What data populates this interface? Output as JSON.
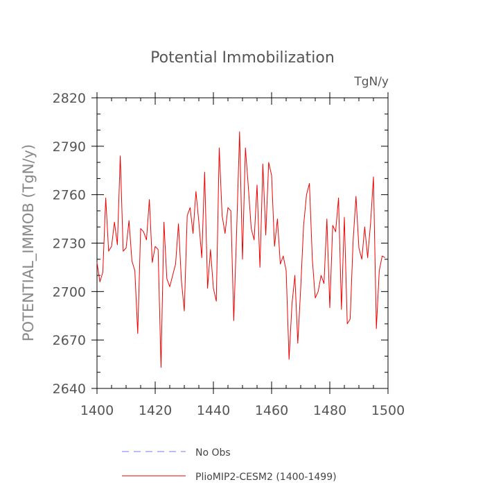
{
  "chart_data": {
    "type": "line",
    "title": "Potential Immobilization",
    "units_label": "TgN/y",
    "ylabel": "POTENTIAL_IMMOB  (TgN/y)",
    "xlabel": "",
    "xlim": [
      1400,
      1500
    ],
    "ylim": [
      2640,
      2820
    ],
    "x_ticks": [
      1400,
      1420,
      1440,
      1460,
      1480,
      1500
    ],
    "y_ticks": [
      2640,
      2670,
      2700,
      2730,
      2760,
      2790,
      2820
    ],
    "grid": false,
    "legend_position": "bottom-center",
    "legend": [
      {
        "label": "No Obs",
        "color": "#7777ff",
        "style": "dashed"
      },
      {
        "label": "PlioMIP2-CESM2 (1400-1499)",
        "color": "#ee0000",
        "style": "solid"
      }
    ],
    "series": [
      {
        "name": "PlioMIP2-CESM2 (1400-1499)",
        "color": "#ee0000",
        "x": [
          1400,
          1401,
          1402,
          1403,
          1404,
          1405,
          1406,
          1407,
          1408,
          1409,
          1410,
          1411,
          1412,
          1413,
          1414,
          1415,
          1416,
          1417,
          1418,
          1419,
          1420,
          1421,
          1422,
          1423,
          1424,
          1425,
          1426,
          1427,
          1428,
          1429,
          1430,
          1431,
          1432,
          1433,
          1434,
          1435,
          1436,
          1437,
          1438,
          1439,
          1440,
          1441,
          1442,
          1443,
          1444,
          1445,
          1446,
          1447,
          1448,
          1449,
          1450,
          1451,
          1452,
          1453,
          1454,
          1455,
          1456,
          1457,
          1458,
          1459,
          1460,
          1461,
          1462,
          1463,
          1464,
          1465,
          1466,
          1467,
          1468,
          1469,
          1470,
          1471,
          1472,
          1473,
          1474,
          1475,
          1476,
          1477,
          1478,
          1479,
          1480,
          1481,
          1482,
          1483,
          1484,
          1485,
          1486,
          1487,
          1488,
          1489,
          1490,
          1491,
          1492,
          1493,
          1494,
          1495,
          1496,
          1497,
          1498,
          1499
        ],
        "values": [
          2718,
          2706,
          2712,
          2758,
          2725,
          2728,
          2743,
          2729,
          2784,
          2725,
          2727,
          2744,
          2719,
          2713,
          2674,
          2739,
          2737,
          2732,
          2757,
          2718,
          2728,
          2726,
          2653,
          2743,
          2708,
          2703,
          2710,
          2717,
          2742,
          2707,
          2688,
          2747,
          2752,
          2736,
          2762,
          2743,
          2721,
          2774,
          2702,
          2726,
          2702,
          2694,
          2789,
          2747,
          2736,
          2752,
          2750,
          2682,
          2738,
          2799,
          2720,
          2789,
          2765,
          2739,
          2732,
          2766,
          2715,
          2779,
          2735,
          2780,
          2772,
          2728,
          2745,
          2717,
          2722,
          2713,
          2658,
          2692,
          2710,
          2668,
          2702,
          2741,
          2760,
          2767,
          2720,
          2696,
          2700,
          2710,
          2705,
          2745,
          2690,
          2741,
          2737,
          2758,
          2689,
          2746,
          2680,
          2683,
          2731,
          2759,
          2727,
          2720,
          2740,
          2721,
          2742,
          2771,
          2677,
          2713,
          2722,
          2721
        ]
      },
      {
        "name": "No Obs",
        "color": "#7777ff",
        "x": [],
        "values": []
      }
    ]
  }
}
